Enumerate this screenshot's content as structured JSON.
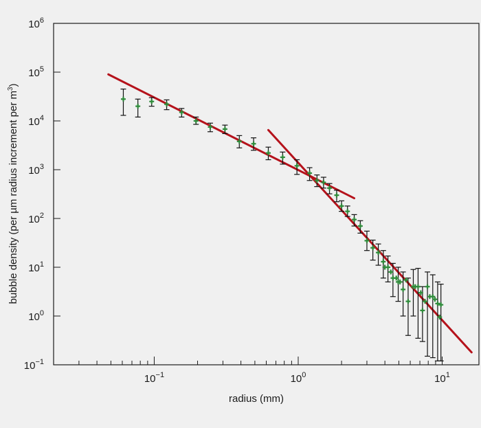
{
  "chart_data": {
    "type": "scatter",
    "title": "",
    "xlabel": "radius (mm)",
    "ylabel_main": "bubble density (per ",
    "ylabel_unit": "µm",
    "ylabel_rest": " radius increment per m",
    "ylabel_sup": "3",
    "ylabel_close": ")",
    "x_scale": "log",
    "y_scale": "log",
    "xlim": [
      0.02,
      18
    ],
    "ylim": [
      0.1,
      1000000
    ],
    "x_ticks": [
      {
        "value": 0.1,
        "base": "10",
        "exp": "−1"
      },
      {
        "value": 1,
        "base": "10",
        "exp": "0"
      },
      {
        "value": 10,
        "base": "10",
        "exp": "1"
      }
    ],
    "y_ticks": [
      {
        "value": 0.1,
        "base": "10",
        "exp": "−1"
      },
      {
        "value": 1,
        "base": "10",
        "exp": "0"
      },
      {
        "value": 10,
        "base": "10",
        "exp": "1"
      },
      {
        "value": 100,
        "base": "10",
        "exp": "2"
      },
      {
        "value": 1000,
        "base": "10",
        "exp": "3"
      },
      {
        "value": 10000,
        "base": "10",
        "exp": "4"
      },
      {
        "value": 100000,
        "base": "10",
        "exp": "5"
      },
      {
        "value": 1000000,
        "base": "10",
        "exp": "6"
      }
    ],
    "grid": false,
    "colors": {
      "points": "#2e8b3a",
      "fit": "#b5121b",
      "errorbar": "#111111",
      "axis": "#1a1a1a"
    },
    "points": [
      {
        "x": 0.061,
        "y": 28000,
        "ylo": 13000,
        "yhi": 45000
      },
      {
        "x": 0.077,
        "y": 20000,
        "ylo": 12000,
        "yhi": 28000
      },
      {
        "x": 0.096,
        "y": 25000,
        "ylo": 20000,
        "yhi": 30000
      },
      {
        "x": 0.122,
        "y": 22000,
        "ylo": 17000,
        "yhi": 27000
      },
      {
        "x": 0.155,
        "y": 15000,
        "ylo": 12000,
        "yhi": 18000
      },
      {
        "x": 0.195,
        "y": 10000,
        "ylo": 8500,
        "yhi": 12000
      },
      {
        "x": 0.245,
        "y": 7500,
        "ylo": 6000,
        "yhi": 9000
      },
      {
        "x": 0.31,
        "y": 6800,
        "ylo": 5500,
        "yhi": 8200
      },
      {
        "x": 0.39,
        "y": 3800,
        "ylo": 2800,
        "yhi": 5000
      },
      {
        "x": 0.49,
        "y": 3400,
        "ylo": 2500,
        "yhi": 4500
      },
      {
        "x": 0.62,
        "y": 2200,
        "ylo": 1600,
        "yhi": 2900
      },
      {
        "x": 0.78,
        "y": 1800,
        "ylo": 1300,
        "yhi": 2300
      },
      {
        "x": 0.98,
        "y": 1200,
        "ylo": 800,
        "yhi": 1600
      },
      {
        "x": 1.2,
        "y": 850,
        "ylo": 600,
        "yhi": 1100
      },
      {
        "x": 1.35,
        "y": 600,
        "ylo": 450,
        "yhi": 780
      },
      {
        "x": 1.5,
        "y": 550,
        "ylo": 420,
        "yhi": 700
      },
      {
        "x": 1.65,
        "y": 420,
        "ylo": 320,
        "yhi": 520
      },
      {
        "x": 1.85,
        "y": 300,
        "ylo": 220,
        "yhi": 380
      },
      {
        "x": 2.0,
        "y": 180,
        "ylo": 140,
        "yhi": 230
      },
      {
        "x": 2.2,
        "y": 140,
        "ylo": 110,
        "yhi": 180
      },
      {
        "x": 2.45,
        "y": 95,
        "ylo": 70,
        "yhi": 120
      },
      {
        "x": 2.7,
        "y": 70,
        "ylo": 50,
        "yhi": 90
      },
      {
        "x": 3.0,
        "y": 35,
        "ylo": 22,
        "yhi": 55
      },
      {
        "x": 3.3,
        "y": 25,
        "ylo": 14,
        "yhi": 36
      },
      {
        "x": 3.6,
        "y": 20,
        "ylo": 11,
        "yhi": 30
      },
      {
        "x": 3.9,
        "y": 13,
        "ylo": 6,
        "yhi": 22
      },
      {
        "x": 4.2,
        "y": 10,
        "ylo": 5,
        "yhi": 17
      },
      {
        "x": 4.55,
        "y": 6,
        "ylo": 2.5,
        "yhi": 12
      },
      {
        "x": 4.95,
        "y": 5,
        "ylo": 2,
        "yhi": 10
      },
      {
        "x": 5.35,
        "y": 3.5,
        "ylo": 1,
        "yhi": 8
      },
      {
        "x": 5.8,
        "y": 2,
        "ylo": 0.4,
        "yhi": 6
      },
      {
        "x": 6.3,
        "y": 4,
        "ylo": 1,
        "yhi": 9
      },
      {
        "x": 6.8,
        "y": 4,
        "ylo": 0.35,
        "yhi": 9.5
      },
      {
        "x": 7.3,
        "y": 1.3,
        "ylo": 0.3,
        "yhi": 4
      },
      {
        "x": 7.9,
        "y": 4,
        "ylo": 0.15,
        "yhi": 8
      },
      {
        "x": 8.6,
        "y": 2.5,
        "ylo": 0.14,
        "yhi": 7
      },
      {
        "x": 9.3,
        "y": 1.8,
        "ylo": 0.12,
        "yhi": 5
      },
      {
        "x": 9.8,
        "y": 1.7,
        "ylo": 0.12,
        "yhi": 4.5
      }
    ],
    "extra_points": [
      {
        "x": 4.0,
        "y": 10
      },
      {
        "x": 4.4,
        "y": 8
      },
      {
        "x": 4.8,
        "y": 6
      },
      {
        "x": 5.1,
        "y": 5
      },
      {
        "x": 5.6,
        "y": 5.5
      },
      {
        "x": 6.5,
        "y": 4
      },
      {
        "x": 7.1,
        "y": 3
      },
      {
        "x": 7.6,
        "y": 2
      },
      {
        "x": 8.2,
        "y": 2.5
      },
      {
        "x": 8.9,
        "y": 2.2
      },
      {
        "x": 9.6,
        "y": 0.95
      }
    ],
    "fit_lines": [
      {
        "x1": 0.048,
        "y1": 90000,
        "x2": 2.45,
        "y2": 260
      },
      {
        "x1": 0.62,
        "y1": 6500,
        "x2": 16,
        "y2": 0.18
      }
    ]
  }
}
